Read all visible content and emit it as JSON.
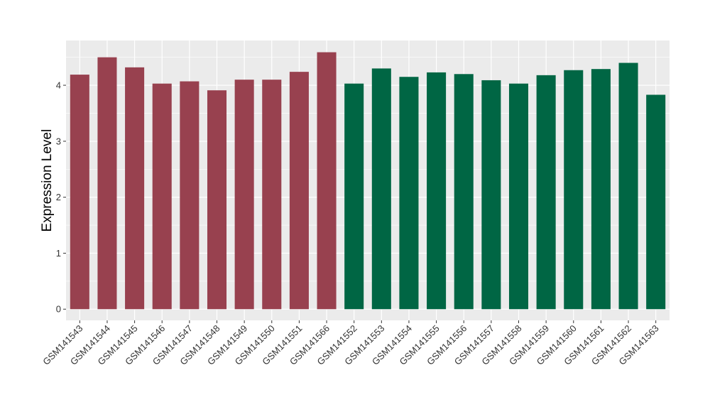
{
  "chart_data": {
    "type": "bar",
    "title": "",
    "xlabel": "",
    "ylabel": "Expression Level",
    "ylim": [
      -0.2,
      4.8
    ],
    "yticks": [
      0,
      1,
      2,
      3,
      4
    ],
    "grid": true,
    "legend": "none",
    "colors": {
      "panel": "#ebebeb",
      "grid": "#ffffff",
      "group1": "#98414f",
      "group2": "#006644"
    },
    "categories": [
      "GSM141543",
      "GSM141544",
      "GSM141545",
      "GSM141546",
      "GSM141547",
      "GSM141548",
      "GSM141549",
      "GSM141550",
      "GSM141551",
      "GSM141566",
      "GSM141552",
      "GSM141553",
      "GSM141554",
      "GSM141555",
      "GSM141556",
      "GSM141557",
      "GSM141558",
      "GSM141559",
      "GSM141560",
      "GSM141561",
      "GSM141562",
      "GSM141563"
    ],
    "values": [
      4.19,
      4.5,
      4.32,
      4.03,
      4.07,
      3.91,
      4.1,
      4.1,
      4.24,
      4.59,
      4.03,
      4.3,
      4.15,
      4.23,
      4.2,
      4.09,
      4.03,
      4.18,
      4.27,
      4.29,
      4.4,
      3.83
    ],
    "groups": [
      "group1",
      "group1",
      "group1",
      "group1",
      "group1",
      "group1",
      "group1",
      "group1",
      "group1",
      "group1",
      "group2",
      "group2",
      "group2",
      "group2",
      "group2",
      "group2",
      "group2",
      "group2",
      "group2",
      "group2",
      "group2",
      "group2"
    ]
  }
}
